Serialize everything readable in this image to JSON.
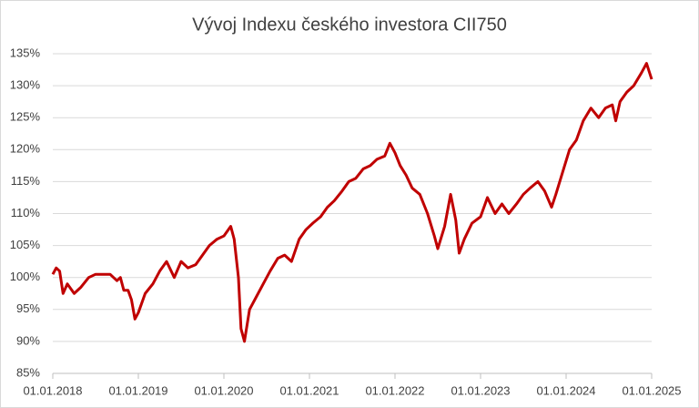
{
  "chart_data": {
    "type": "line",
    "title": "Vývoj Indexu českého investora CII750",
    "x": [
      2018.0,
      2018.04,
      2018.08,
      2018.12,
      2018.17,
      2018.25,
      2018.33,
      2018.42,
      2018.5,
      2018.58,
      2018.67,
      2018.75,
      2018.79,
      2018.83,
      2018.88,
      2018.92,
      2018.96,
      2019.0,
      2019.08,
      2019.17,
      2019.25,
      2019.33,
      2019.42,
      2019.5,
      2019.58,
      2019.67,
      2019.75,
      2019.83,
      2019.92,
      2020.0,
      2020.08,
      2020.12,
      2020.17,
      2020.2,
      2020.24,
      2020.3,
      2020.38,
      2020.46,
      2020.54,
      2020.63,
      2020.71,
      2020.79,
      2020.88,
      2020.96,
      2021.04,
      2021.13,
      2021.21,
      2021.29,
      2021.38,
      2021.46,
      2021.54,
      2021.63,
      2021.71,
      2021.79,
      2021.88,
      2021.94,
      2022.0,
      2022.06,
      2022.13,
      2022.2,
      2022.29,
      2022.38,
      2022.46,
      2022.5,
      2022.58,
      2022.65,
      2022.71,
      2022.75,
      2022.81,
      2022.9,
      2023.0,
      2023.08,
      2023.17,
      2023.25,
      2023.33,
      2023.42,
      2023.5,
      2023.58,
      2023.67,
      2023.75,
      2023.83,
      2023.88,
      2023.96,
      2024.04,
      2024.12,
      2024.2,
      2024.29,
      2024.38,
      2024.46,
      2024.54,
      2024.58,
      2024.63,
      2024.71,
      2024.79,
      2024.88,
      2024.94,
      2025.0
    ],
    "series": [
      {
        "color": "#c00000",
        "values": [
          100.5,
          101.5,
          101,
          97.5,
          99,
          97.5,
          98.5,
          100,
          100.5,
          100.5,
          100.5,
          99.5,
          100,
          98,
          98,
          96.5,
          93.5,
          94.5,
          97.5,
          99,
          101,
          102.5,
          100,
          102.5,
          101.5,
          102,
          103.5,
          105,
          106,
          106.5,
          108,
          106,
          100,
          92,
          90,
          95,
          97,
          99,
          101,
          103,
          103.5,
          102.5,
          106,
          107.5,
          108.5,
          109.5,
          111,
          112,
          113.5,
          115,
          115.5,
          117,
          117.5,
          118.5,
          119,
          121,
          119.5,
          117.5,
          116,
          114,
          113,
          110,
          106.5,
          104.5,
          108,
          113,
          109,
          103.8,
          106,
          108.5,
          109.5,
          112.5,
          110,
          111.5,
          110,
          111.5,
          113,
          114,
          115,
          113.5,
          111,
          113,
          116.5,
          120,
          121.5,
          124.5,
          126.5,
          125,
          126.5,
          127,
          124.5,
          127.5,
          129,
          130,
          132,
          133.5,
          131
        ]
      }
    ],
    "xlim": [
      2018,
      2025
    ],
    "xticks": [
      {
        "value": 2018,
        "label": "01.01.2018"
      },
      {
        "value": 2019,
        "label": "01.01.2019"
      },
      {
        "value": 2020,
        "label": "01.01.2020"
      },
      {
        "value": 2021,
        "label": "01.01.2021"
      },
      {
        "value": 2022,
        "label": "01.01.2022"
      },
      {
        "value": 2023,
        "label": "01.01.2023"
      },
      {
        "value": 2024,
        "label": "01.01.2024"
      },
      {
        "value": 2025,
        "label": "01.01.2025"
      }
    ],
    "ylim": [
      85,
      135
    ],
    "yticks": [
      {
        "value": 85,
        "label": "85%"
      },
      {
        "value": 90,
        "label": "90%"
      },
      {
        "value": 95,
        "label": "95%"
      },
      {
        "value": 100,
        "label": "100%"
      },
      {
        "value": 105,
        "label": "105%"
      },
      {
        "value": 110,
        "label": "110%"
      },
      {
        "value": 115,
        "label": "115%"
      },
      {
        "value": 120,
        "label": "120%"
      },
      {
        "value": 125,
        "label": "125%"
      },
      {
        "value": 130,
        "label": "130%"
      },
      {
        "value": 135,
        "label": "135%"
      }
    ],
    "grid": true
  }
}
